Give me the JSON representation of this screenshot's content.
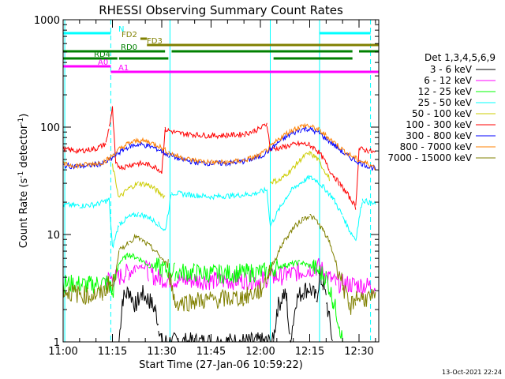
{
  "chart_data": {
    "type": "line",
    "title": "RHESSI Observing Summary Count Rates",
    "xlabel": "Start Time (27-Jan-06 10:59:22)",
    "ylabel_main": "Count Rate (s",
    "ylabel_sup1": "-1",
    "ylabel_mid": " detector",
    "ylabel_sup2": "-1",
    "ylabel_end": ")",
    "y_scale": "log",
    "ylim": [
      1,
      1000
    ],
    "xlim_min": [
      0,
      96
    ],
    "y_ticks": [
      {
        "value": 1,
        "label": "1"
      },
      {
        "value": 10,
        "label": "10"
      },
      {
        "value": 100,
        "label": "100"
      },
      {
        "value": 1000,
        "label": "1000"
      }
    ],
    "x_ticks": [
      {
        "min": 0,
        "label": "11:00"
      },
      {
        "min": 15,
        "label": "11:15"
      },
      {
        "min": 30,
        "label": "11:30"
      },
      {
        "min": 45,
        "label": "11:45"
      },
      {
        "min": 60,
        "label": "12:00"
      },
      {
        "min": 75,
        "label": "12:15"
      },
      {
        "min": 90,
        "label": "12:30"
      }
    ],
    "legend_title": "Det 1,3,4,5,6,9",
    "legend_position": "right",
    "series": [
      {
        "name": "3 - 6 keV",
        "color": "#000000",
        "points": [
          [
            17,
            1.0
          ],
          [
            18,
            2.5
          ],
          [
            20,
            3.0
          ],
          [
            22,
            2.2
          ],
          [
            24,
            2.8
          ],
          [
            26,
            2.5
          ],
          [
            28,
            2.0
          ],
          [
            29,
            1.5
          ],
          [
            30,
            1.0
          ],
          [
            64,
            1.0
          ],
          [
            65,
            2.0
          ],
          [
            67,
            2.8
          ],
          [
            68,
            2.5
          ],
          [
            69,
            1.0
          ],
          [
            71,
            2.5
          ],
          [
            73,
            3.0
          ],
          [
            75,
            3.2
          ],
          [
            77,
            2.5
          ],
          [
            78,
            4.0
          ],
          [
            79,
            3.5
          ],
          [
            80,
            2.5
          ],
          [
            82,
            1.0
          ]
        ]
      },
      {
        "name": "6 - 12 keV",
        "color": "#ff00ff",
        "points": [
          [
            13,
            3.8
          ],
          [
            17,
            4.0
          ],
          [
            20,
            4.5
          ],
          [
            22,
            5.0
          ],
          [
            24,
            5.2
          ],
          [
            26,
            4.5
          ],
          [
            28,
            4.0
          ],
          [
            32,
            3.8
          ],
          [
            48,
            3.7
          ],
          [
            60,
            3.8
          ],
          [
            64,
            4.0
          ],
          [
            68,
            4.2
          ],
          [
            72,
            4.5
          ],
          [
            75,
            4.8
          ],
          [
            78,
            5.0
          ],
          [
            80,
            4.2
          ],
          [
            83,
            3.5
          ],
          [
            95,
            3.3
          ]
        ]
      },
      {
        "name": "12 - 25 keV",
        "color": "#00ff00",
        "points": [
          [
            0,
            3.5
          ],
          [
            8,
            3.4
          ],
          [
            14,
            3.6
          ],
          [
            15,
            2.8
          ],
          [
            17,
            5.5
          ],
          [
            20,
            6.5
          ],
          [
            23,
            6.0
          ],
          [
            26,
            5.2
          ],
          [
            30,
            4.8
          ],
          [
            34,
            4.5
          ],
          [
            40,
            4.4
          ],
          [
            48,
            4.3
          ],
          [
            56,
            4.4
          ],
          [
            62,
            4.5
          ],
          [
            65,
            5.0
          ],
          [
            68,
            5.2
          ],
          [
            72,
            5.5
          ],
          [
            76,
            5.0
          ],
          [
            80,
            4.0
          ],
          [
            82,
            2.5
          ],
          [
            84,
            1.5
          ],
          [
            85,
            1.0
          ]
        ]
      },
      {
        "name": "25 - 50 keV",
        "color": "#00ffff",
        "points": [
          [
            0,
            19
          ],
          [
            5,
            18.5
          ],
          [
            10,
            19
          ],
          [
            14,
            21
          ],
          [
            15,
            7.5
          ],
          [
            17,
            12.5
          ],
          [
            20,
            14.5
          ],
          [
            23,
            15.5
          ],
          [
            26,
            14.5
          ],
          [
            29,
            12.5
          ],
          [
            31,
            10.8
          ],
          [
            33,
            24.5
          ],
          [
            38,
            23.5
          ],
          [
            45,
            22.5
          ],
          [
            52,
            23
          ],
          [
            58,
            24
          ],
          [
            62,
            26
          ],
          [
            63,
            12
          ],
          [
            66,
            18
          ],
          [
            69,
            25
          ],
          [
            72,
            30
          ],
          [
            75,
            34
          ],
          [
            77,
            32
          ],
          [
            79,
            28
          ],
          [
            82,
            22
          ],
          [
            85,
            15
          ],
          [
            87,
            11
          ],
          [
            89,
            9
          ],
          [
            91,
            21
          ],
          [
            95,
            19
          ]
        ]
      },
      {
        "name": "50 - 100 keV",
        "color": "#cccc00",
        "points": [
          [
            15,
            44
          ],
          [
            17,
            22
          ],
          [
            20,
            27
          ],
          [
            23,
            30
          ],
          [
            26,
            29
          ],
          [
            29,
            25
          ],
          [
            31,
            22.5
          ],
          [
            32,
            0
          ],
          [
            63,
            31
          ],
          [
            66,
            32
          ],
          [
            70,
            42
          ],
          [
            73,
            53
          ],
          [
            75,
            57
          ],
          [
            77,
            52
          ],
          [
            79,
            42
          ],
          [
            81,
            33
          ]
        ]
      },
      {
        "name": "100 - 300 keV",
        "color": "#ff0000",
        "points": [
          [
            0,
            62
          ],
          [
            5,
            60
          ],
          [
            10,
            63
          ],
          [
            13,
            70
          ],
          [
            14,
            100
          ],
          [
            15,
            150
          ],
          [
            16,
            45
          ],
          [
            18,
            42
          ],
          [
            22,
            46
          ],
          [
            26,
            45
          ],
          [
            29,
            41
          ],
          [
            30,
            38
          ],
          [
            31,
            95
          ],
          [
            35,
            88
          ],
          [
            40,
            85
          ],
          [
            45,
            83
          ],
          [
            50,
            84
          ],
          [
            55,
            86
          ],
          [
            58,
            92
          ],
          [
            60,
            97
          ],
          [
            62,
            108
          ],
          [
            63,
            62
          ],
          [
            66,
            64
          ],
          [
            70,
            69
          ],
          [
            73,
            70
          ],
          [
            75,
            68
          ],
          [
            77,
            62
          ],
          [
            79,
            52
          ],
          [
            81,
            40
          ],
          [
            84,
            30
          ],
          [
            86,
            25
          ],
          [
            88,
            20
          ],
          [
            89,
            18
          ],
          [
            90,
            63
          ],
          [
            93,
            60
          ],
          [
            95,
            58
          ]
        ]
      },
      {
        "name": "300 - 800 keV",
        "color": "#0000ff",
        "points": [
          [
            0,
            44
          ],
          [
            4,
            43
          ],
          [
            8,
            44
          ],
          [
            12,
            46
          ],
          [
            14,
            49
          ],
          [
            17,
            58
          ],
          [
            20,
            66
          ],
          [
            23,
            69
          ],
          [
            26,
            67
          ],
          [
            29,
            62
          ],
          [
            32,
            55
          ],
          [
            36,
            50
          ],
          [
            40,
            47
          ],
          [
            45,
            46
          ],
          [
            50,
            46
          ],
          [
            55,
            48
          ],
          [
            60,
            53
          ],
          [
            63,
            62
          ],
          [
            66,
            74
          ],
          [
            69,
            85
          ],
          [
            72,
            94
          ],
          [
            74,
            97
          ],
          [
            76,
            93
          ],
          [
            78,
            87
          ],
          [
            80,
            78
          ],
          [
            83,
            66
          ],
          [
            86,
            55
          ],
          [
            90,
            47
          ],
          [
            93,
            43
          ],
          [
            95,
            41
          ]
        ]
      },
      {
        "name": "800 - 7000 keV",
        "color": "#ff8000",
        "points": [
          [
            0,
            45
          ],
          [
            4,
            44
          ],
          [
            8,
            45
          ],
          [
            12,
            47
          ],
          [
            14,
            51
          ],
          [
            17,
            62
          ],
          [
            20,
            71
          ],
          [
            23,
            75
          ],
          [
            26,
            73
          ],
          [
            29,
            67
          ],
          [
            32,
            58
          ],
          [
            36,
            52
          ],
          [
            40,
            49
          ],
          [
            45,
            47
          ],
          [
            50,
            47
          ],
          [
            55,
            49
          ],
          [
            60,
            55
          ],
          [
            63,
            65
          ],
          [
            66,
            79
          ],
          [
            69,
            92
          ],
          [
            72,
            101
          ],
          [
            74,
            104
          ],
          [
            76,
            100
          ],
          [
            78,
            93
          ],
          [
            80,
            83
          ],
          [
            83,
            70
          ],
          [
            86,
            58
          ],
          [
            90,
            49
          ],
          [
            93,
            45
          ],
          [
            95,
            42
          ]
        ]
      },
      {
        "name": "7000 - 15000 keV",
        "color": "#808000",
        "points": [
          [
            0,
            3.0
          ],
          [
            4,
            2.8
          ],
          [
            8,
            2.7
          ],
          [
            12,
            2.8
          ],
          [
            14,
            3.5
          ],
          [
            15,
            3.2
          ],
          [
            17,
            7.0
          ],
          [
            20,
            8.5
          ],
          [
            22,
            9.5
          ],
          [
            24,
            8.8
          ],
          [
            27,
            7.5
          ],
          [
            30,
            6.0
          ],
          [
            32,
            5.0
          ],
          [
            34,
            2.3
          ],
          [
            40,
            2.4
          ],
          [
            48,
            2.5
          ],
          [
            55,
            2.6
          ],
          [
            60,
            3.0
          ],
          [
            62,
            4.0
          ],
          [
            64,
            5.5
          ],
          [
            67,
            8.5
          ],
          [
            70,
            11.5
          ],
          [
            73,
            14.0
          ],
          [
            75,
            15.0
          ],
          [
            77,
            13.5
          ],
          [
            79,
            11.0
          ],
          [
            81,
            8.5
          ],
          [
            83,
            5.5
          ],
          [
            85,
            3.5
          ],
          [
            87,
            2.0
          ],
          [
            89,
            2.6
          ],
          [
            95,
            2.5
          ]
        ]
      }
    ],
    "vertical_lines": [
      {
        "min": 0.5,
        "style": "solid"
      },
      {
        "min": 14.5,
        "style": "dashed"
      },
      {
        "min": 32.5,
        "style": "solid"
      },
      {
        "min": 63.0,
        "style": "solid"
      },
      {
        "min": 78.0,
        "style": "solid"
      },
      {
        "min": 93.5,
        "style": "dashed"
      }
    ],
    "flag_bars": [
      {
        "label": "N",
        "color": "#00ffff",
        "segments": [
          [
            0,
            14.5
          ],
          [
            78,
            93.5
          ]
        ]
      },
      {
        "label": "FD2",
        "color": "#808000",
        "segments": [
          [
            23.5,
            25.5
          ]
        ]
      },
      {
        "label": "FD3",
        "color": "#808000",
        "segments": [
          [
            25.5,
            96
          ]
        ]
      },
      {
        "label": "RD0",
        "color": "#008000",
        "segments": [
          [
            0,
            31
          ],
          [
            33,
            88
          ],
          [
            90,
            96
          ]
        ]
      },
      {
        "label": "RD4",
        "color": "#008000",
        "segments": [
          [
            0,
            16.5
          ],
          [
            17,
            32
          ],
          [
            64,
            88
          ]
        ]
      },
      {
        "label": "A0",
        "color": "#ff00ff",
        "segments": [
          [
            0,
            14.5
          ]
        ]
      },
      {
        "label": "A1",
        "color": "#ff00ff",
        "segments": [
          [
            14.5,
            96
          ]
        ]
      }
    ],
    "footer_date": "13-Oct-2021 22:24"
  }
}
